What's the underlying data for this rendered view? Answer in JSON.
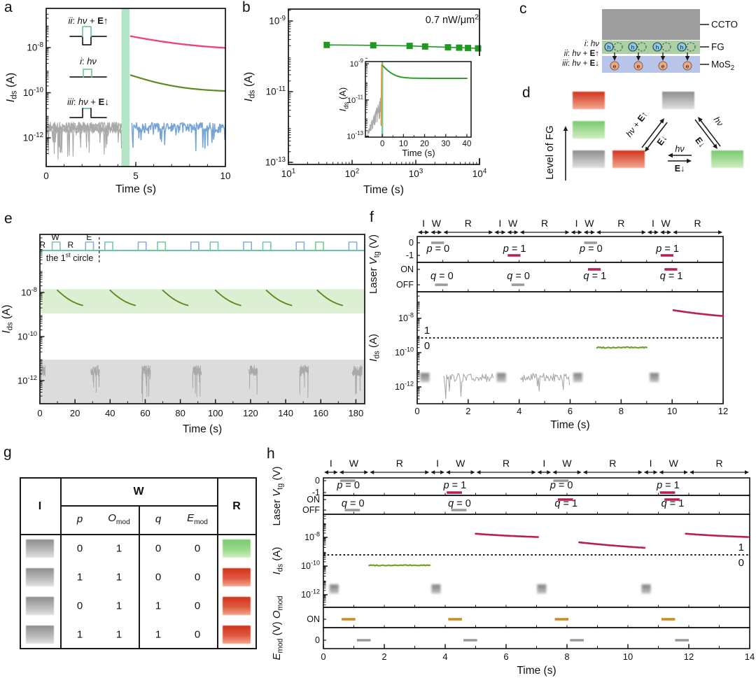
{
  "colors": {
    "pink": "#f0437e",
    "crimson": "#b91e4d",
    "olive": "#5c8a1e",
    "olive_light": "#74a028",
    "green": "#1f9922",
    "green_inset": "#2da02a",
    "blue": "#74a3d6",
    "teal": "#52c08f",
    "pulse_green": "#74ca9b",
    "pulse_blue": "#88aede",
    "band_green_a": "#b3e6c6",
    "band_green_e": "#ddefd3",
    "band_gray": "#dcdcdc",
    "orange": "#e29c2e",
    "orange_bar": "#cf8a18",
    "gray_noise": "#a9a9a9",
    "gray_bar": "#999999",
    "axis": "#1a1a1a"
  },
  "panels": {
    "a": {
      "letter": "a",
      "xlabel": "Time (s)",
      "ylabel": "*I*_{ds} (A)",
      "x_ticks": [
        "0",
        "5",
        "10"
      ],
      "y_ticks": [
        "10^{-8}",
        "10^{-10}",
        "10^{-12}"
      ],
      "curve_labels": [
        {
          "text": "*ii*: *hν* + **E**↑",
          "color_key": "pink"
        },
        {
          "text": "*i*: *hν*",
          "color_key": "olive"
        },
        {
          "text": "*iii*: *hν* + **E**↓",
          "color_key": "blue"
        }
      ]
    },
    "b": {
      "letter": "b",
      "xlabel": "Time (s)",
      "ylabel": "*I*_{ds} (A)",
      "annotation": "0.7 nW/μm^{2}",
      "x_ticks": [
        "10^{1}",
        "10^{2}",
        "10^{3}",
        "10^{4}"
      ],
      "y_ticks": [
        "10^{-9}",
        "10^{-11}",
        "10^{-13}"
      ],
      "inset": {
        "xlabel": "Time (s)",
        "ylabel": "*I*_{ds} (A)",
        "x_ticks": [
          "0",
          "10",
          "20",
          "30",
          "40"
        ],
        "y_ticks": [
          "10^{-9}",
          "10^{-11}",
          "10^{-13}"
        ]
      }
    },
    "c": {
      "letter": "c",
      "layer_labels": [
        "CCTO",
        "FG",
        "MoS_{2}"
      ],
      "condition_labels": [
        "*i*: *hν*",
        "*ii*: *hν* + **E**↑",
        "*iii*: *hν* + **E**↓"
      ],
      "hole_label": "h",
      "electron_label": "e"
    },
    "d": {
      "letter": "d",
      "axis_label": "Level of FG",
      "left_stack": [
        "red",
        "green",
        "gray"
      ],
      "bottom_box": "red",
      "top_box": "gray",
      "right_box": "green",
      "up_label": "*hν* + **E**↑",
      "up_rev_label": "**E**↓",
      "right_label": "*hν*",
      "right_rev_label": "**E**↓",
      "mid_label": "*hν*",
      "mid_rev_label": "**E**↓"
    },
    "e": {
      "letter": "e",
      "xlabel": "Time (s)",
      "ylabel": "*I*_{ds} (A)",
      "pulse_labels": [
        "R",
        "W",
        "R",
        "E"
      ],
      "first_circle": "the 1^{st} circle",
      "x_ticks": [
        "0",
        "20",
        "40",
        "60",
        "80",
        "100",
        "120",
        "140",
        "160",
        "180"
      ],
      "y_ticks": [
        "10^{-8}",
        "10^{-10}",
        "10^{-12}"
      ]
    },
    "f": {
      "letter": "f",
      "iwr_labels": [
        "I",
        "W",
        "R"
      ],
      "top_ylabel": "Laser *V*_{tg} (V)",
      "vtg_ticks": [
        "0",
        "-1"
      ],
      "laser_ticks": [
        "ON",
        "OFF"
      ],
      "p_labels": [
        "*p* = 0",
        "*p* = 1",
        "*p* = 0",
        "*p* = 1"
      ],
      "q_labels": [
        "*q* = 0",
        "*q* = 0",
        "*q* = 1",
        "*q* = 1"
      ],
      "ids_ylabel": "*I*_{ds} (A)",
      "y_ticks": [
        "10^{-8}",
        "10^{-10}",
        "10^{-12}"
      ],
      "level_labels": [
        "1",
        "0"
      ],
      "x_ticks": [
        "0",
        "2",
        "4",
        "6",
        "8",
        "10",
        "12"
      ],
      "xlabel": "Time (s)"
    },
    "g": {
      "letter": "g",
      "col_input": "I",
      "col_write": "W",
      "col_read": "R",
      "sub_headers": [
        "*p*",
        "*O*_{mod}",
        "*q*",
        "*E*_{mod}"
      ],
      "rows": [
        {
          "input": "gray",
          "p": "0",
          "o_mod": "1",
          "q": "0",
          "e_mod": "0",
          "read": "green"
        },
        {
          "input": "gray",
          "p": "1",
          "o_mod": "1",
          "q": "0",
          "e_mod": "0",
          "read": "red"
        },
        {
          "input": "gray",
          "p": "0",
          "o_mod": "1",
          "q": "1",
          "e_mod": "0",
          "read": "red"
        },
        {
          "input": "gray",
          "p": "1",
          "o_mod": "1",
          "q": "1",
          "e_mod": "0",
          "read": "red"
        }
      ]
    },
    "h": {
      "letter": "h",
      "iwr_labels": [
        "I",
        "W",
        "R"
      ],
      "top_ylabel": "Laser *V*_{tg} (V)",
      "vtg_ticks": [
        "0",
        "-1"
      ],
      "laser_ticks": [
        "ON",
        "OFF"
      ],
      "p_labels": [
        "*p* = 0",
        "*p* = 1",
        "*p* = 0",
        "*p* = 1"
      ],
      "q_labels": [
        "*q* = 0",
        "*q* = 0",
        "*q* = 1",
        "*q* = 1"
      ],
      "ids_ylabel": "*I*_{ds} (A)",
      "y_ticks": [
        "10^{-8}",
        "10^{-10}",
        "10^{-12}"
      ],
      "level_labels": [
        "1",
        "0"
      ],
      "omod_tick": "ON",
      "emod_tick": "0",
      "bottom_ylabel": "*E*_{mod} (V) *O*_{mod}",
      "x_ticks": [
        "0",
        "2",
        "4",
        "6",
        "8",
        "10",
        "12",
        "14"
      ],
      "xlabel": "Time (s)"
    }
  },
  "chart_data": {
    "a": {
      "type": "line",
      "x_range": [
        0,
        10
      ],
      "y_log_range": [
        -13.27,
        -6.26
      ],
      "x_tick_vals": [
        0,
        5,
        10
      ],
      "y_tick_exps": [
        -8,
        -10,
        -12
      ],
      "write_band_x": [
        4.2,
        4.65
      ],
      "series": [
        {
          "name": "dark-noise",
          "type": "noise",
          "color_key": "gray_noise",
          "x": [
            0,
            4.22
          ],
          "log_base": -11.55,
          "amp": 0.5,
          "spike": 1.4,
          "seeds": [
            11,
            12,
            13
          ],
          "width": 1.1
        },
        {
          "name": "iii-hv-Edown",
          "type": "noise",
          "color_key": "blue",
          "x": [
            4.78,
            10
          ],
          "log_base": -11.55,
          "amp": 0.45,
          "spike": 0.9,
          "seeds": [
            4
          ],
          "width": 1.5
        },
        {
          "name": "ii-hv-Eup",
          "type": "decay",
          "color_key": "pink",
          "x": [
            4.72,
            10
          ],
          "i_start": 3.2e-08,
          "i_end": 7.5e-09,
          "tau": 2.2,
          "width": 2.4
        },
        {
          "name": "i-hv",
          "type": "decay",
          "color_key": "olive",
          "x": [
            4.72,
            10
          ],
          "i_start": 6e-10,
          "i_end": 1.08e-10,
          "tau": 1.4,
          "width": 2.2
        }
      ]
    },
    "b": {
      "type": "scatter",
      "x_log_range": [
        1,
        4
      ],
      "y_log_range": [
        -13,
        -8.66
      ],
      "x_tick_exps": [
        1,
        2,
        3,
        4
      ],
      "y_tick_exps": [
        -9,
        -11,
        -13
      ],
      "points_t": [
        40,
        215,
        800,
        1400,
        3200,
        4800,
        6600,
        9500
      ],
      "points_i": [
        2.1e-10,
        2.05e-10,
        1.97e-10,
        1.9e-10,
        1.8e-10,
        1.76e-10,
        1.72e-10,
        1.68e-10
      ],
      "inset": {
        "x_range": [
          -8,
          42
        ],
        "y_log_range": [
          -13,
          -8.6
        ],
        "x_tick_vals": [
          0,
          10,
          20,
          30,
          40
        ],
        "y_tick_exps": [
          -9,
          -11,
          -13
        ],
        "noise": {
          "x": [
            -7,
            -0.55
          ],
          "log_base": [
            -12.85,
            -11.35
          ],
          "amp": [
            0.15,
            0.55
          ],
          "seed": 7
        },
        "spike_pts_t": [
          -0.55,
          -0.3,
          0
        ],
        "spike_pts_e": [
          -12.4,
          -9.05,
          -9.02
        ],
        "light_on_x": 0,
        "decay": {
          "x": [
            0.1,
            40
          ],
          "i_start": 8e-10,
          "i_end": 1.55e-10,
          "tau": 2.8
        }
      }
    },
    "e": {
      "type": "line",
      "x_range": [
        0,
        185
      ],
      "y_log_range": [
        -13.05,
        -5.37
      ],
      "x_tick_vals": [
        0,
        20,
        40,
        60,
        80,
        100,
        120,
        140,
        160,
        180
      ],
      "y_tick_exps": [
        -8,
        -10,
        -12
      ],
      "bands": [
        {
          "y_log": [
            -8.95,
            -7.85
          ],
          "color_key": "band_green_e"
        },
        {
          "y_log": [
            -13.05,
            -11.05
          ],
          "color_key": "band_gray"
        }
      ],
      "pulses": {
        "green_starts": [
          7,
          37,
          67,
          97,
          127,
          157
        ],
        "blue_starts": [
          26,
          56,
          86,
          116,
          146,
          176
        ],
        "width": 4.5
      },
      "decays": {
        "starts": [
          10,
          40,
          70,
          100,
          129,
          158
        ],
        "duration": 14.5,
        "i_start": 1.25e-08,
        "i_end": 2e-09,
        "tau": 5.0
      },
      "bursts": {
        "segments": [
          [
            0,
            3
          ],
          [
            29,
            34
          ],
          [
            58,
            63
          ],
          [
            87,
            92
          ],
          [
            119,
            124
          ],
          [
            148,
            153
          ],
          [
            178,
            183.5
          ]
        ],
        "log_base": -11.55,
        "amp": 0.5,
        "spike": 1.3,
        "seed": 21
      },
      "first_circle_x": 33.8
    },
    "f": {
      "type": "timing",
      "x_range": [
        0,
        12
      ],
      "cycle_starts": [
        0,
        3,
        6,
        9
      ],
      "cycle_bounds": [
        0,
        0.5,
        1.0,
        3.0
      ],
      "x_tick_vals": [
        0,
        2,
        4,
        6,
        8,
        10,
        12
      ],
      "y_tick_exps": [
        -8,
        -10,
        -12
      ],
      "p_offsets": [
        0.55,
        1.05
      ],
      "p_values": [
        0,
        1,
        0,
        1
      ],
      "q_offsets": [
        0.7,
        1.2
      ],
      "q_values": [
        0,
        0,
        1,
        1
      ],
      "threshold_log": -9.14,
      "markers_t": [
        0.3,
        3.3,
        6.3,
        9.3
      ],
      "markers_log": -11.45,
      "noise_segments": [
        [
          1.05,
          3.0
        ],
        [
          4.05,
          6.0
        ]
      ],
      "noise_base": -11.45,
      "noise_amp": 0.5,
      "noise_spike": 1.25,
      "noise_seed": 31,
      "flat": {
        "x": [
          7.05,
          9.0
        ],
        "log_y": -9.7
      },
      "decays": [
        {
          "x": [
            10.05,
            12
          ],
          "i_start": 3e-08,
          "i_end": 9e-09,
          "tau": 1.3
        }
      ]
    },
    "g": {
      "type": "table",
      "rows": [
        [
          0,
          1,
          0,
          0,
          "green"
        ],
        [
          1,
          1,
          0,
          0,
          "red"
        ],
        [
          0,
          1,
          1,
          0,
          "red"
        ],
        [
          1,
          1,
          1,
          0,
          "red"
        ]
      ]
    },
    "h": {
      "type": "timing",
      "x_range": [
        0,
        14
      ],
      "cycle_starts": [
        0,
        3.5,
        7,
        10.5
      ],
      "cycle_bounds": [
        0,
        0.5,
        1.5,
        3.5
      ],
      "x_tick_vals": [
        0,
        2,
        4,
        6,
        8,
        10,
        12,
        14
      ],
      "y_tick_exps": [
        -8,
        -10,
        -12
      ],
      "p_offsets": [
        0.55,
        1.05
      ],
      "p_values": [
        0,
        1,
        0,
        1
      ],
      "q_offsets": [
        0.7,
        1.2
      ],
      "q_values": [
        0,
        0,
        1,
        1
      ],
      "threshold_log": -9.22,
      "markers_t": [
        0.35,
        3.7,
        7.17,
        10.6
      ],
      "markers_log": -11.6,
      "flat": {
        "x": [
          1.5,
          3.5
        ],
        "log_y": -9.95
      },
      "decays": [
        {
          "x": [
            5.0,
            7.05
          ],
          "i_start": 1.8e-08,
          "i_end": 8e-09,
          "tau": 1.5
        },
        {
          "x": [
            8.4,
            10.55
          ],
          "i_start": 4.5e-09,
          "i_end": 1.05e-09,
          "tau": 1.5
        },
        {
          "x": [
            11.9,
            13.95
          ],
          "i_start": 1.8e-08,
          "i_end": 8e-09,
          "tau": 1.5
        }
      ],
      "o_bars": [
        [
          0.6,
          1.05
        ],
        [
          4.1,
          4.55
        ],
        [
          7.6,
          8.05
        ],
        [
          11.1,
          11.55
        ]
      ],
      "e_bars": [
        [
          1.1,
          1.55
        ],
        [
          4.6,
          5.05
        ],
        [
          8.1,
          8.55
        ],
        [
          11.55,
          12.0
        ]
      ]
    }
  }
}
